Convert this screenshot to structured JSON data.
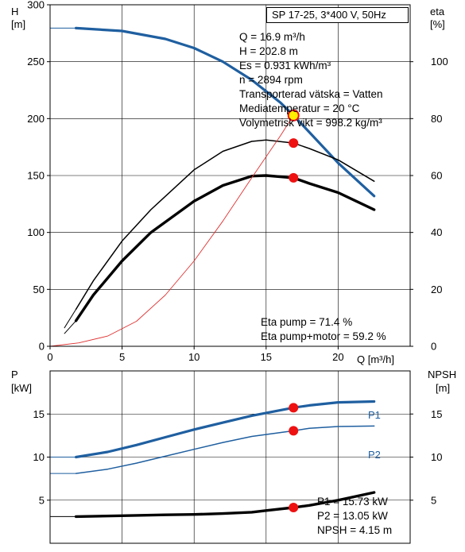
{
  "title": "SP 17-25, 3*400 V, 50Hz",
  "info_lines": [
    "Q = 16.9 m³/h",
    "H = 202.8 m",
    "Es = 0.931 kWh/m³",
    "n = 2894 rpm",
    "Transporterad vätska = Vatten",
    "Mediatemperatur = 20 °C",
    "Volymetrisk vikt = 998.2 kg/m³"
  ],
  "eta_lines": [
    "Eta pump = 71.4 %",
    "Eta pump+motor = 59.2 %"
  ],
  "power_lines": [
    "P1 = 15.73 kW",
    "P2 = 13.05 kW",
    "NPSH = 4.15 m"
  ],
  "colors": {
    "head": "#1f5fa0",
    "system": "#e03030",
    "point": "#ee1111",
    "point_highlight": "#ffee00",
    "grid": "#000000"
  },
  "chart_data": [
    {
      "type": "line",
      "name": "head-efficiency",
      "xlabel": "Q [m³/h]",
      "ylabel": [
        "H",
        "[m]"
      ],
      "ylabel_right": [
        "eta",
        "[%]"
      ],
      "xlim": [
        0,
        25
      ],
      "ylim": [
        0,
        300
      ],
      "ylim_right": [
        0,
        120
      ],
      "x_ticks": [
        0,
        5,
        10,
        15,
        20
      ],
      "y_ticks": [
        0,
        50,
        100,
        150,
        200,
        250,
        300
      ],
      "y_ticks_right": [
        0,
        20,
        40,
        60,
        80,
        100
      ],
      "grid": true,
      "series": [
        {
          "axis": "left",
          "style": "head-extension",
          "x": [
            0,
            1.8
          ],
          "y": [
            279.5,
            279.5
          ]
        },
        {
          "axis": "left",
          "style": "head",
          "x": [
            1.8,
            5,
            8,
            10,
            12,
            14,
            16,
            16.9,
            18,
            20,
            22.5
          ],
          "y": [
            279.5,
            277,
            270,
            262,
            250,
            234,
            214,
            202.8,
            188,
            161,
            132
          ]
        },
        {
          "axis": "right",
          "style": "eta-thin",
          "x": [
            1.8,
            3,
            5,
            7,
            10,
            12,
            14,
            15,
            16.9,
            18,
            20,
            22.5
          ],
          "y": [
            13,
            23,
            37,
            48,
            62,
            68.5,
            72,
            72.5,
            71.4,
            69.5,
            65.5,
            58
          ]
        },
        {
          "axis": "right",
          "style": "eta-thin-extension",
          "x": [
            1,
            1.8
          ],
          "y": [
            6.5,
            13
          ]
        },
        {
          "axis": "right",
          "style": "eta-thick",
          "x": [
            1.8,
            3,
            5,
            7,
            10,
            12,
            14,
            15,
            16.9,
            18,
            20,
            22.5
          ],
          "y": [
            9,
            18,
            30,
            40,
            51,
            56.5,
            59.8,
            60,
            59.2,
            57.2,
            54,
            48
          ]
        },
        {
          "axis": "right",
          "style": "eta-thick-extension",
          "x": [
            1,
            1.8
          ],
          "y": [
            4.5,
            9
          ]
        },
        {
          "axis": "left",
          "style": "system",
          "x": [
            0,
            2,
            4,
            6,
            8,
            10,
            12,
            14,
            16,
            16.9
          ],
          "y": [
            0,
            3,
            9,
            22,
            45,
            75,
            110,
            148,
            185,
            202.8
          ]
        }
      ],
      "points": [
        {
          "axis": "left",
          "x": 16.9,
          "y": 202.8,
          "highlight": true
        },
        {
          "axis": "right",
          "x": 16.9,
          "y": 71.4
        },
        {
          "axis": "right",
          "x": 16.9,
          "y": 59.2
        }
      ]
    },
    {
      "type": "line",
      "name": "power-npsh",
      "ylabel": [
        "P",
        "[kW]"
      ],
      "ylabel_right": [
        "NPSH",
        "[m]"
      ],
      "xlim": [
        0,
        25
      ],
      "ylim": [
        0,
        20
      ],
      "ylim_right": [
        0,
        20
      ],
      "y_ticks": [
        5,
        10,
        15
      ],
      "y_ticks_right": [
        5,
        10,
        15
      ],
      "grid": true,
      "series": [
        {
          "axis": "left",
          "style": "p1-extension",
          "x": [
            0,
            1.8
          ],
          "y": [
            10,
            10
          ]
        },
        {
          "axis": "left",
          "style": "p1",
          "name": "P1",
          "x": [
            1.8,
            4,
            6,
            8,
            10,
            12,
            14,
            16.9,
            18,
            20,
            22.5
          ],
          "y": [
            10,
            10.6,
            11.4,
            12.3,
            13.2,
            14.0,
            14.8,
            15.73,
            16.0,
            16.35,
            16.45
          ]
        },
        {
          "axis": "left",
          "style": "p2-extension",
          "x": [
            0,
            1.8
          ],
          "y": [
            8.1,
            8.1
          ]
        },
        {
          "axis": "left",
          "style": "p2",
          "name": "P2",
          "x": [
            1.8,
            4,
            6,
            8,
            10,
            12,
            14,
            16.9,
            18,
            20,
            22.5
          ],
          "y": [
            8.1,
            8.6,
            9.3,
            10.1,
            10.9,
            11.7,
            12.4,
            13.05,
            13.35,
            13.55,
            13.6
          ]
        },
        {
          "axis": "right",
          "style": "npsh-extension",
          "x": [
            0,
            1.8
          ],
          "y": [
            3.1,
            3.1
          ]
        },
        {
          "axis": "right",
          "style": "npsh",
          "x": [
            1.8,
            5,
            8,
            10,
            12,
            14,
            15,
            16.9,
            18,
            20,
            22.5
          ],
          "y": [
            3.1,
            3.2,
            3.3,
            3.35,
            3.45,
            3.6,
            3.8,
            4.15,
            4.4,
            5.0,
            5.9
          ]
        }
      ],
      "points": [
        {
          "axis": "left",
          "x": 16.9,
          "y": 15.73
        },
        {
          "axis": "left",
          "x": 16.9,
          "y": 13.05
        },
        {
          "axis": "right",
          "x": 16.9,
          "y": 4.15
        }
      ]
    }
  ]
}
